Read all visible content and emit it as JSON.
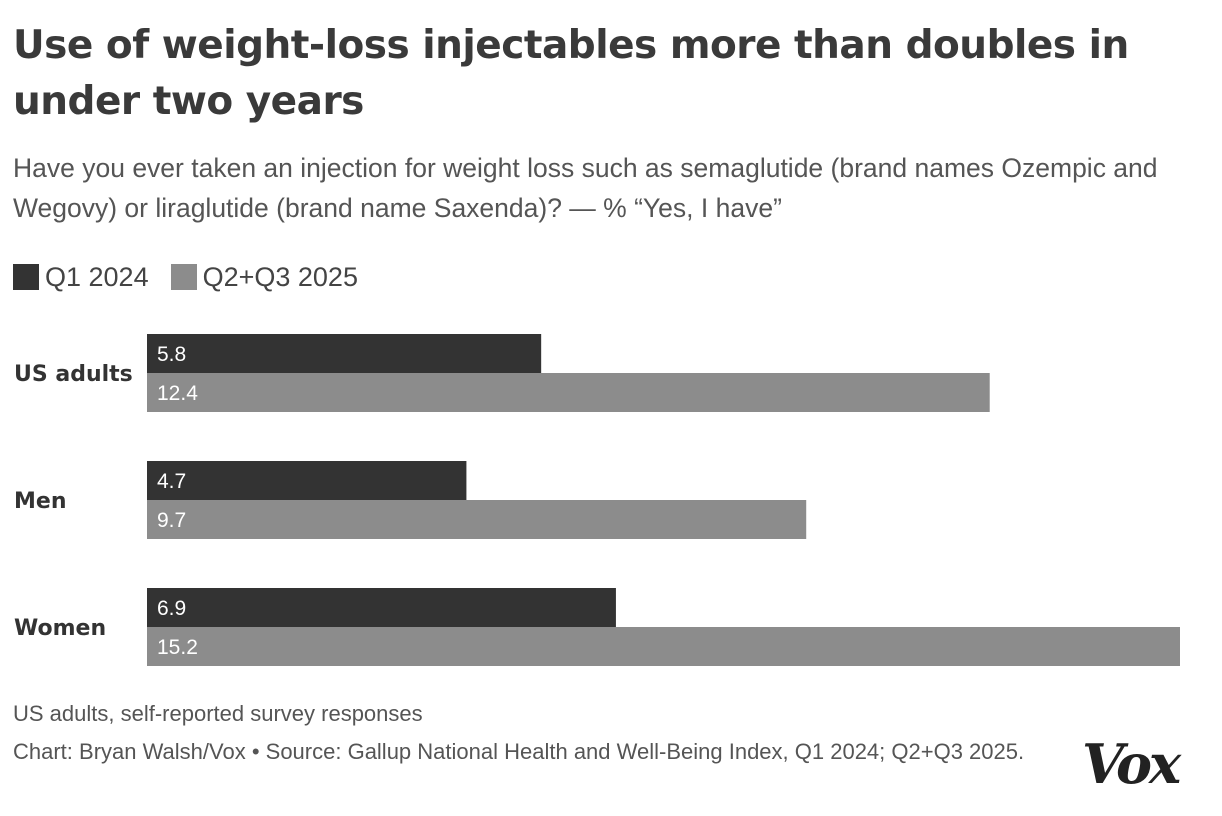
{
  "header": {
    "title": "Use of weight-loss injectables more than doubles in under two years",
    "subtitle": "Have you ever taken an injection for weight loss such as semaglutide (brand names Ozempic and Wegovy) or liraglutide (brand name Saxenda)? — % “Yes, I have”"
  },
  "colors": {
    "q1_2024": "#333333",
    "q2q3_2025": "#8c8c8c",
    "label_text": "#ffffff"
  },
  "chart_data": {
    "type": "bar",
    "orientation": "horizontal",
    "title": "Use of weight-loss injectables more than doubles in under two years",
    "categories": [
      "US adults",
      "Men",
      "Women"
    ],
    "series": [
      {
        "name": "Q1 2024",
        "values": [
          5.8,
          4.7,
          6.9
        ]
      },
      {
        "name": "Q2+Q3 2025",
        "values": [
          12.4,
          9.7,
          15.2
        ]
      }
    ],
    "xlabel": "",
    "ylabel": "",
    "xlim": [
      0,
      15.2
    ],
    "grid": false,
    "legend_position": "top-left"
  },
  "footer": {
    "note": "US adults, self-reported survey responses",
    "source": "Chart: Bryan Walsh/Vox • Source: Gallup National Health and Well-Being Index, Q1 2024; Q2+Q3 2025.",
    "logo": "Vox"
  }
}
